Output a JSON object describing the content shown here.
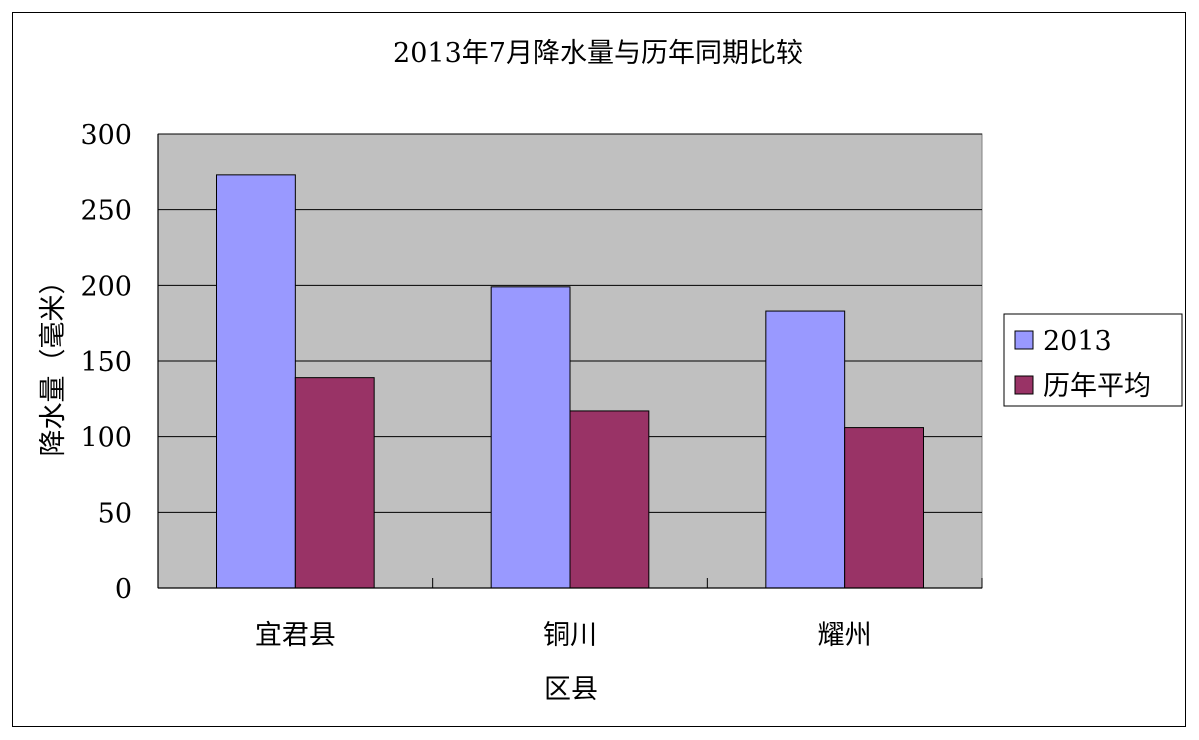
{
  "chart_data": {
    "type": "bar",
    "title": "2013年7月降水量与历年同期比较",
    "xlabel": "区县",
    "ylabel": "降水量（毫米）",
    "categories": [
      "宜君县",
      "铜川",
      "耀州"
    ],
    "series": [
      {
        "name": "2013",
        "values": [
          273,
          199,
          183
        ],
        "color": "#9999FF"
      },
      {
        "name": "历年平均",
        "values": [
          139,
          117,
          106
        ],
        "color": "#993366"
      }
    ],
    "ylim": [
      0,
      300
    ],
    "yticks": [
      0,
      50,
      100,
      150,
      200,
      250,
      300
    ],
    "plot_background": "#C0C0C0",
    "grid": true,
    "legend_position": "right"
  }
}
